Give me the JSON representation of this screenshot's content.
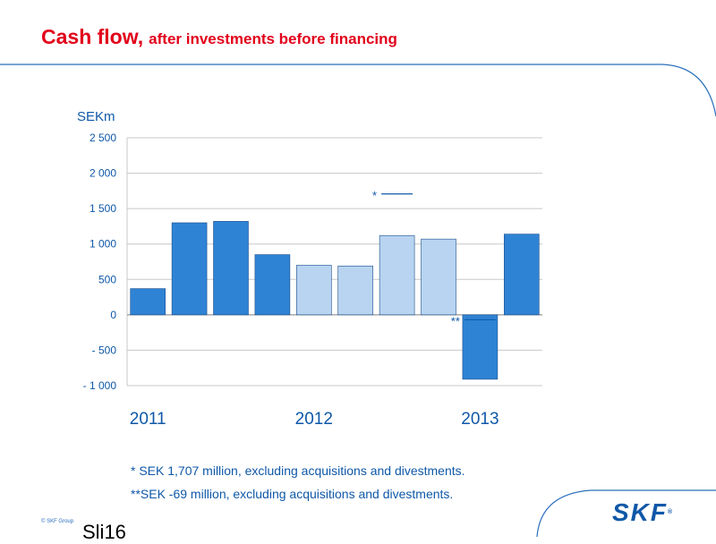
{
  "header": {
    "title": "Cash flow,",
    "subtitle": "after investments before financing"
  },
  "chart_data": {
    "type": "bar",
    "ylabel": "SEKm",
    "ylim": [
      -1000,
      2500
    ],
    "yticks": [
      2500,
      2000,
      1500,
      1000,
      500,
      0,
      -500,
      -1000
    ],
    "ytick_labels": [
      "2 500",
      "2 000",
      "1 500",
      "1 000",
      "500",
      "0",
      "- 500",
      "- 1 000"
    ],
    "year_labels": [
      "2011",
      "2012",
      "2013"
    ],
    "grid": true,
    "values": [
      370,
      1300,
      1320,
      850,
      700,
      690,
      1120,
      1070,
      -910,
      1140
    ],
    "bar_colors": [
      "#2f83d4",
      "#2f83d4",
      "#2f83d4",
      "#2f83d4",
      "#b8d4f1",
      "#b8d4f1",
      "#b8d4f1",
      "#b8d4f1",
      "#2f83d4",
      "#2f83d4"
    ],
    "annotations": [
      {
        "text": "*",
        "bar_index": 6,
        "value": 1707
      },
      {
        "text": "**",
        "bar_index": 8,
        "value": -69
      }
    ]
  },
  "footnotes": [
    "*  SEK 1,707 million, excluding acquisitions and divestments.",
    "**SEK -69 million, excluding acquisitions and divestments."
  ],
  "footer": {
    "copyright": "© SKF Group",
    "slide_number": "Sli16",
    "logo_text": "SKF",
    "logo_mark": "®"
  },
  "colors": {
    "title": "#e2001a",
    "brand_blue": "#0f58a8",
    "bar_dark": "#2f83d4",
    "bar_light": "#b8d4f1"
  }
}
